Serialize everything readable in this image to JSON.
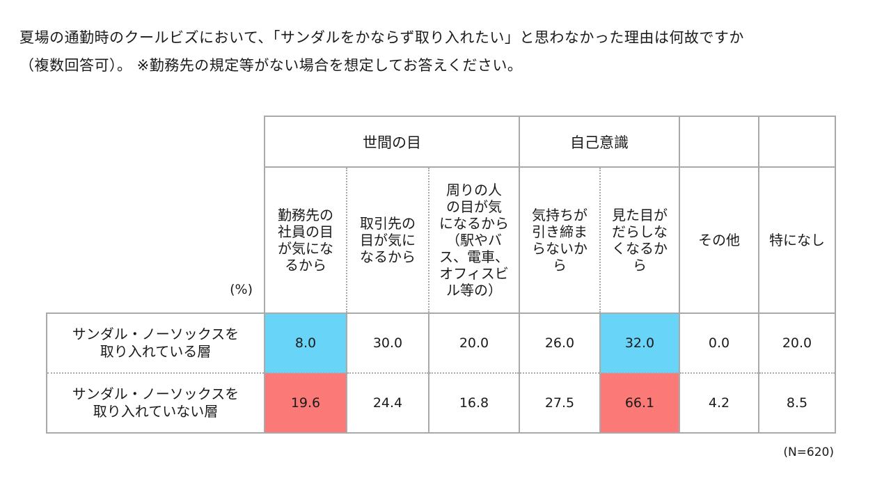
{
  "question": {
    "line1": "夏場の通勤時のクールビズにおいて、「サンダルをかならず取り入れたい」と思わなかった理由は何故ですか",
    "line2": "（複数回答可）。 ※勤務先の規定等がない場合を想定してお答えください。"
  },
  "chart_data": {
    "type": "table",
    "unit_label": "(%)",
    "groups": [
      {
        "label": "世間の目",
        "span": 3
      },
      {
        "label": "自己意識",
        "span": 2
      },
      {
        "label": "",
        "span": 1
      },
      {
        "label": "",
        "span": 1
      }
    ],
    "columns": [
      "勤務先の\n社員の目\nが気にな\nるから",
      "取引先の\n目が気に\nなるから",
      "周りの人\nの目が気\nになるから\n（駅やバ\nス、電車、\nオフィスビ\nル等の）",
      "気持ちが\n引き締ま\nらないか\nら",
      "見た目が\nだらしな\nくなるか\nら",
      "その他",
      "特になし"
    ],
    "rows": [
      {
        "label": "サンダル・ノーソックスを\n取り入れている層",
        "values": [
          "8.0",
          "30.0",
          "20.0",
          "26.0",
          "32.0",
          "0.0",
          "20.0"
        ],
        "highlights": [
          "blue",
          "",
          "",
          "",
          "blue",
          "",
          ""
        ]
      },
      {
        "label": "サンダル・ノーソックスを\n取り入れていない層",
        "values": [
          "19.6",
          "24.4",
          "16.8",
          "27.5",
          "66.1",
          "4.2",
          "8.5"
        ],
        "highlights": [
          "red",
          "",
          "",
          "",
          "red",
          "",
          ""
        ]
      }
    ],
    "colors": {
      "blue": "#68d4f8",
      "red": "#fb7a78",
      "border": "#a9a9a9"
    }
  },
  "footnote": "(N=620)"
}
